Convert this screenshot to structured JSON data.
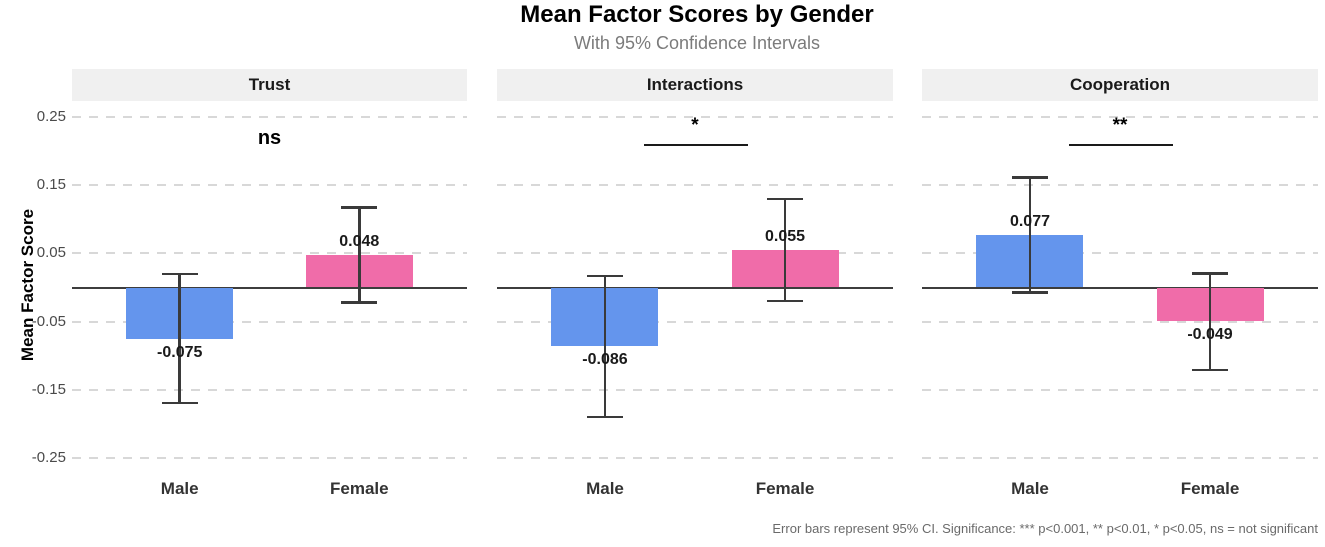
{
  "chart_data": {
    "type": "bar",
    "title": "Mean Factor Scores by Gender",
    "subtitle": "With 95% Confidence Intervals",
    "ylabel": "Mean Factor Score",
    "caption": "Error bars represent 95% CI. Significance: *** p<0.001, ** p<0.01, * p<0.05, ns = not significant",
    "categories": [
      "Male",
      "Female"
    ],
    "tick_labels": [
      "0.25",
      "0.15",
      "0.05",
      "-0.05",
      "-0.15",
      "-0.25"
    ],
    "ticks": [
      0.25,
      0.15,
      0.05,
      -0.05,
      -0.15,
      -0.25
    ],
    "ylim": [
      -0.263,
      0.273
    ],
    "grid": "dashed-horizontal-major-only",
    "legend": "none",
    "colors": {
      "male": "#6495ED",
      "female": "#F06CA9",
      "error_bar": "#3A3A3A",
      "zero_line": "#3D3D3D",
      "gridline": "#D8D8D8",
      "strip_bg": "#F0F0F0"
    },
    "facets": [
      {
        "label": "Trust",
        "significance": "ns",
        "sig_line": false,
        "bars": [
          {
            "category": "Male",
            "value": -0.075,
            "label": "-0.075",
            "ci_low": -0.17,
            "ci_high": 0.02
          },
          {
            "category": "Female",
            "value": 0.048,
            "label": "0.048",
            "ci_low": -0.022,
            "ci_high": 0.118
          }
        ]
      },
      {
        "label": "Interactions",
        "significance": "*",
        "sig_line": true,
        "bars": [
          {
            "category": "Male",
            "value": -0.086,
            "label": "-0.086",
            "ci_low": -0.19,
            "ci_high": 0.017
          },
          {
            "category": "Female",
            "value": 0.055,
            "label": "0.055",
            "ci_low": -0.02,
            "ci_high": 0.13
          }
        ]
      },
      {
        "label": "Cooperation",
        "significance": "**",
        "sig_line": true,
        "bars": [
          {
            "category": "Male",
            "value": 0.077,
            "label": "0.077",
            "ci_low": -0.008,
            "ci_high": 0.162
          },
          {
            "category": "Female",
            "value": -0.049,
            "label": "-0.049",
            "ci_low": -0.121,
            "ci_high": 0.021
          }
        ]
      }
    ]
  }
}
